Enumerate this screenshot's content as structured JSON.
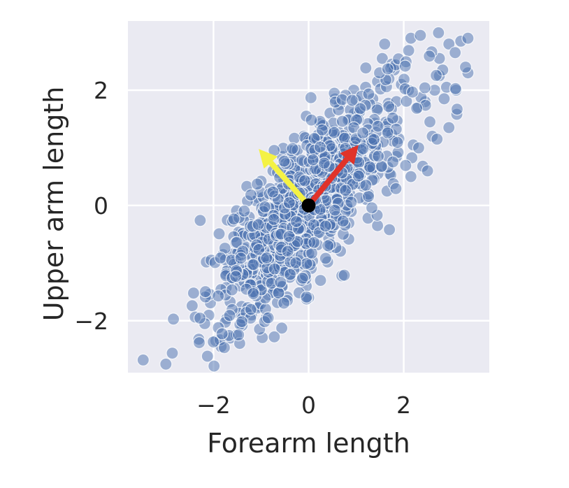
{
  "chart_data": {
    "type": "scatter",
    "title": "",
    "xlabel": "Forearm length",
    "ylabel": "Upper arm length",
    "xlim": [
      -3.8,
      3.8
    ],
    "ylim": [
      -2.9,
      3.2
    ],
    "xticks": [
      {
        "value": -2,
        "label": "−2"
      },
      {
        "value": 0,
        "label": "0"
      },
      {
        "value": 2,
        "label": "2"
      }
    ],
    "yticks": [
      {
        "value": -2,
        "label": "−2"
      },
      {
        "value": 0,
        "label": "0"
      },
      {
        "value": 2,
        "label": "2"
      }
    ],
    "grid": true,
    "legend": "none",
    "style": {
      "background": "#eaeaf2",
      "grid_color": "#ffffff",
      "point_color": "#4c72b0",
      "point_alpha": 0.5,
      "point_edge": "#ffffff"
    },
    "series": [
      {
        "points": [
          [
            -3.48,
            -2.68
          ],
          [
            -2.28,
            -0.26
          ],
          [
            -2.42,
            -1.52
          ],
          [
            -2.31,
            -2.32
          ],
          [
            -2.3,
            -2.38
          ],
          [
            -2.15,
            -0.98
          ],
          [
            -2.05,
            -0.95
          ],
          [
            -1.95,
            -2.35
          ],
          [
            -1.84,
            -2.45
          ],
          [
            -1.65,
            -2.3
          ],
          [
            -1.4,
            -2.08
          ],
          [
            -1.2,
            -1.9
          ],
          [
            -1.05,
            -1.75
          ],
          [
            -1.1,
            -1.45
          ],
          [
            -0.95,
            -1.2
          ],
          [
            -0.85,
            -1.55
          ],
          [
            -0.6,
            -1.1
          ],
          [
            -0.4,
            -1.2
          ],
          [
            -0.2,
            -1.0
          ],
          [
            0.0,
            -1.6
          ],
          [
            0.25,
            -1.3
          ],
          [
            0.4,
            -0.98
          ],
          [
            0.7,
            -1.22
          ],
          [
            0.75,
            -1.21
          ],
          [
            -0.05,
            -1.4
          ],
          [
            -1.3,
            0.33
          ],
          [
            -1.0,
            0.42
          ],
          [
            -0.75,
            0.6
          ],
          [
            -0.55,
            0.85
          ],
          [
            -0.3,
            0.95
          ],
          [
            -0.1,
            1.2
          ],
          [
            -0.05,
            1.55
          ],
          [
            0.15,
            1.08
          ],
          [
            0.3,
            1.4
          ],
          [
            0.45,
            1.6
          ],
          [
            0.65,
            1.75
          ],
          [
            0.85,
            1.3
          ],
          [
            0.95,
            2.0
          ],
          [
            1.2,
            2.05
          ],
          [
            1.35,
            1.85
          ],
          [
            1.45,
            2.15
          ],
          [
            1.55,
            2.55
          ],
          [
            1.6,
            2.8
          ],
          [
            1.75,
            2.45
          ],
          [
            1.8,
            2.35
          ],
          [
            1.95,
            2.1
          ],
          [
            2.1,
            2.0
          ],
          [
            2.15,
            2.9
          ],
          [
            2.35,
            2.95
          ],
          [
            2.45,
            1.8
          ],
          [
            2.55,
            1.45
          ],
          [
            2.6,
            1.2
          ],
          [
            2.75,
            2.25
          ],
          [
            2.65,
            2.0
          ],
          [
            2.75,
            2.55
          ],
          [
            2.82,
            2.35
          ],
          [
            2.95,
            2.8
          ],
          [
            2.9,
            2.05
          ],
          [
            3.1,
            2.0
          ],
          [
            3.2,
            2.85
          ],
          [
            3.35,
            2.9
          ],
          [
            3.35,
            2.3
          ],
          [
            3.3,
            2.4
          ],
          [
            2.85,
            1.85
          ],
          [
            2.95,
            1.35
          ],
          [
            2.7,
            1.15
          ],
          [
            2.2,
            1.05
          ],
          [
            2.4,
            0.68
          ],
          [
            2.15,
            0.5
          ],
          [
            2.5,
            0.6
          ],
          [
            1.85,
            0.85
          ],
          [
            1.7,
            0.55
          ],
          [
            1.65,
            0.25
          ],
          [
            1.7,
            -0.42
          ],
          [
            1.45,
            -0.35
          ],
          [
            1.25,
            -0.22
          ],
          [
            1.1,
            0.55
          ],
          [
            1.05,
            0.9
          ],
          [
            0.85,
            0.7
          ],
          [
            0.55,
            0.45
          ],
          [
            0.25,
            0.05
          ],
          [
            -0.55,
            -0.35
          ],
          [
            -0.9,
            -0.75
          ],
          [
            -0.95,
            -0.3
          ],
          [
            -1.1,
            -0.55
          ],
          [
            -1.35,
            -0.75
          ],
          [
            -1.5,
            -0.9
          ],
          [
            -1.6,
            -1.25
          ],
          [
            -1.7,
            -1.1
          ],
          [
            -1.8,
            -0.85
          ],
          [
            -1.45,
            -0.5
          ],
          [
            -1.25,
            -0.2
          ],
          [
            -0.7,
            -0.05
          ],
          [
            -0.35,
            0.25
          ],
          [
            -0.05,
            0.45
          ],
          [
            0.35,
            0.8
          ],
          [
            0.6,
            1.05
          ],
          [
            0.05,
            -0.55
          ],
          [
            -0.3,
            -0.75
          ],
          [
            -0.75,
            -1.4
          ]
        ],
        "cluster": {
          "center": [
            0.0,
            0.0
          ],
          "cov": [
            [
              1.0,
              0.8
            ],
            [
              0.8,
              1.0
            ]
          ],
          "count": 900,
          "seed": 7
        }
      }
    ],
    "arrows": [
      {
        "name": "major-axis-arrow",
        "from": [
          0,
          0
        ],
        "to": [
          1.05,
          1.05
        ],
        "color": "#e0332a"
      },
      {
        "name": "minor-axis-arrow",
        "from": [
          0,
          0
        ],
        "to": [
          -1.05,
          0.98
        ],
        "color": "#f4f244"
      }
    ],
    "center_marker": {
      "x": 0,
      "y": 0,
      "color": "#000000"
    }
  }
}
